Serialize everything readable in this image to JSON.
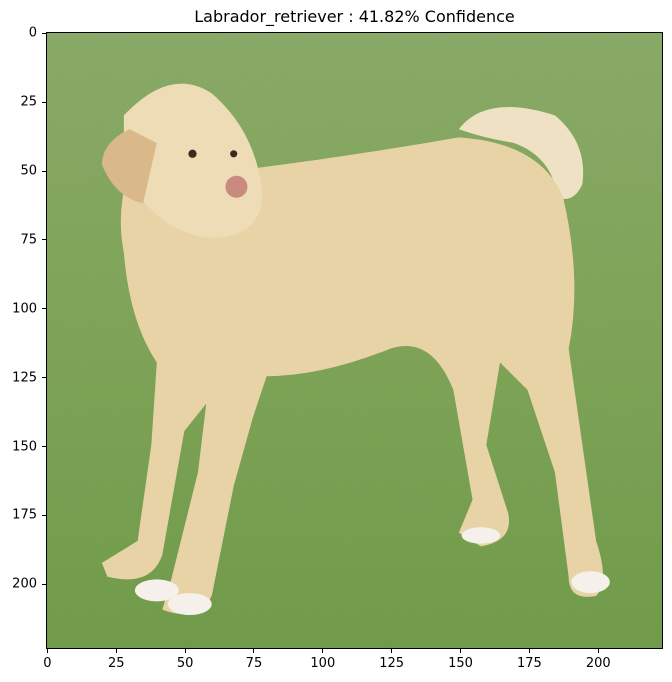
{
  "title": "Labrador_retriever : 41.82% Confidence",
  "image": {
    "subject": "yellow labrador retriever standing on grass",
    "width": 224,
    "height": 224
  },
  "axes": {
    "xticks": [
      "0",
      "25",
      "50",
      "75",
      "100",
      "125",
      "150",
      "175",
      "200"
    ],
    "yticks": [
      "0",
      "25",
      "50",
      "75",
      "100",
      "125",
      "150",
      "175",
      "200"
    ]
  },
  "colors": {
    "grass": "#7fa457",
    "dog": "#e8d3a6"
  }
}
